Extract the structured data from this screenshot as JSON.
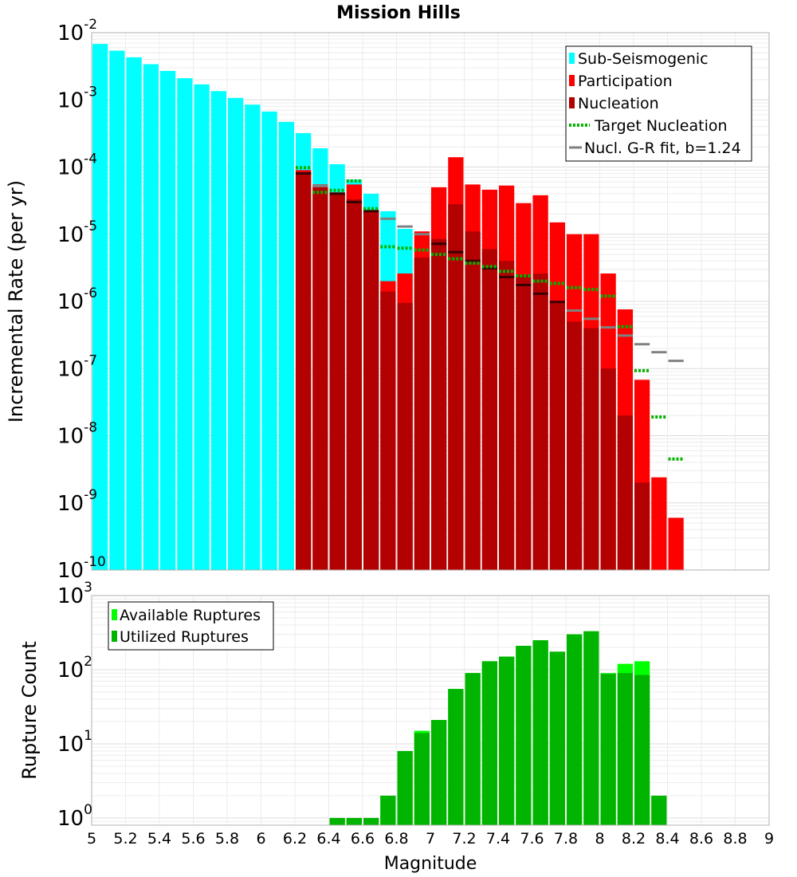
{
  "chart_data": [
    {
      "type": "bar",
      "title": "Mission Hills",
      "ylabel": "Incremental Rate (per yr)",
      "xlabel": "",
      "yscale": "log",
      "ylim": [
        1e-10,
        0.01
      ],
      "xlim": [
        5,
        9
      ],
      "bin_width": 0.1,
      "legend_placement": "top-right",
      "grid": true,
      "y_ticks": [
        {
          "base": "10",
          "exp": "-10"
        },
        {
          "base": "10",
          "exp": "-9"
        },
        {
          "base": "10",
          "exp": "-8"
        },
        {
          "base": "10",
          "exp": "-7"
        },
        {
          "base": "10",
          "exp": "-6"
        },
        {
          "base": "10",
          "exp": "-5"
        },
        {
          "base": "10",
          "exp": "-4"
        },
        {
          "base": "10",
          "exp": "-3"
        },
        {
          "base": "10",
          "exp": "-2"
        }
      ],
      "series": [
        {
          "name": "Sub-Seismogenic",
          "color": "#00ffff",
          "x": [
            5.05,
            5.15,
            5.25,
            5.35,
            5.45,
            5.55,
            5.65,
            5.75,
            5.85,
            5.95,
            6.05,
            6.15,
            6.25,
            6.35,
            6.45,
            6.55,
            6.65,
            6.75,
            6.85
          ],
          "values": [
            0.0068,
            0.0054,
            0.0043,
            0.0034,
            0.0027,
            0.0021,
            0.0017,
            0.00135,
            0.00107,
            0.00085,
            0.00067,
            0.00047,
            0.00032,
            0.00019,
            0.00011,
            6.5e-05,
            4e-05,
            2.2e-05,
            1.2e-05
          ]
        },
        {
          "name": "Participation",
          "color": "#ff0000",
          "x": [
            6.25,
            6.35,
            6.45,
            6.55,
            6.65,
            6.75,
            6.85,
            6.95,
            7.05,
            7.15,
            7.25,
            7.35,
            7.45,
            7.55,
            7.65,
            7.75,
            7.85,
            7.95,
            8.05,
            8.15,
            8.25,
            8.35,
            8.45
          ],
          "values": [
            9e-05,
            5.5e-05,
            4.2e-05,
            5.5e-05,
            2.3e-05,
            2e-06,
            2.6e-06,
            1.1e-05,
            5e-05,
            0.00014,
            5.5e-05,
            4.6e-05,
            5.3e-05,
            2.9e-05,
            3.8e-05,
            1.5e-05,
            1e-05,
            1e-05,
            2.6e-06,
            7.6e-07,
            6.8e-08,
            2.4e-09,
            6e-10
          ]
        },
        {
          "name": "Nucleation",
          "color": "#b30000",
          "x": [
            6.25,
            6.35,
            6.45,
            6.55,
            6.65,
            6.75,
            6.85,
            6.95,
            7.05,
            7.15,
            7.25,
            7.35,
            7.45,
            7.55,
            7.65,
            7.75,
            7.85,
            7.95,
            8.05,
            8.15,
            8.25
          ],
          "values": [
            8.5e-05,
            5e-05,
            4e-05,
            3.3e-05,
            2.2e-05,
            1.4e-06,
            9.5e-07,
            4.5e-06,
            8.5e-06,
            2.8e-05,
            1.1e-05,
            6e-06,
            4e-06,
            2.5e-06,
            2.6e-06,
            1e-06,
            5e-07,
            4e-07,
            1e-07,
            2e-08,
            2e-09
          ]
        },
        {
          "name": "Target Nucleation",
          "color": "#00b400",
          "style": "dotted",
          "x": [
            6.25,
            6.35,
            6.45,
            6.55,
            6.65,
            6.75,
            6.85,
            6.95,
            7.05,
            7.15,
            7.25,
            7.35,
            7.45,
            7.55,
            7.65,
            7.75,
            7.85,
            7.95,
            8.05,
            8.15,
            8.25,
            8.35,
            8.45
          ],
          "values": [
            9.8e-05,
            4.2e-05,
            4.5e-05,
            6.2e-05,
            2.4e-05,
            6.5e-06,
            6.2e-06,
            5.8e-06,
            5e-06,
            4.3e-06,
            3.7e-06,
            3.3e-06,
            2.8e-06,
            2.4e-06,
            2e-06,
            1.85e-06,
            1.6e-06,
            1.5e-06,
            1.2e-06,
            4.2e-07,
            9.3e-08,
            1.9e-08,
            4.5e-09
          ]
        },
        {
          "name": "Nucl. G-R fit, b=1.24",
          "color": "#808080",
          "style": "dash",
          "x": [
            6.25,
            6.35,
            6.45,
            6.55,
            6.65,
            6.75,
            6.85,
            6.95,
            7.05,
            7.15,
            7.25,
            7.35,
            7.45,
            7.55,
            7.65,
            7.75,
            7.85,
            7.95,
            8.05,
            8.15,
            8.25,
            8.35,
            8.45
          ],
          "values": [
            8e-05,
            5.2e-05,
            4e-05,
            3e-05,
            2.2e-05,
            1.7e-05,
            1.3e-05,
            1e-05,
            7.2e-06,
            5.4e-06,
            4e-06,
            3.1e-06,
            2.3e-06,
            1.75e-06,
            1.3e-06,
            9.8e-07,
            7.3e-07,
            5.5e-07,
            4.1e-07,
            3.1e-07,
            2.3e-07,
            1.75e-07,
            1.3e-07
          ]
        }
      ]
    },
    {
      "type": "bar",
      "title": "",
      "ylabel": "Rupture Count",
      "xlabel": "Magnitude",
      "yscale": "log",
      "ylim": [
        0.8,
        1000
      ],
      "xlim": [
        5,
        9
      ],
      "bin_width": 0.1,
      "legend_placement": "top-left",
      "grid": true,
      "y_ticks": [
        {
          "value": 1,
          "base": "10",
          "exp": "0"
        },
        {
          "value": 10,
          "base": "10",
          "exp": "1"
        },
        {
          "value": 100,
          "base": "10",
          "exp": "2"
        },
        {
          "value": 1000,
          "base": "10",
          "exp": "3"
        }
      ],
      "x_ticks": [
        "5",
        "5.2",
        "5.4",
        "5.6",
        "5.8",
        "6",
        "6.2",
        "6.4",
        "6.6",
        "6.8",
        "7",
        "7.2",
        "7.4",
        "7.6",
        "7.8",
        "8",
        "8.2",
        "8.4",
        "8.6",
        "8.8",
        "9"
      ],
      "series": [
        {
          "name": "Available Ruptures",
          "color": "#00ff00",
          "x": [
            6.45,
            6.55,
            6.65,
            6.75,
            6.85,
            6.95,
            7.05,
            7.15,
            7.25,
            7.35,
            7.45,
            7.55,
            7.65,
            7.75,
            7.85,
            7.95,
            8.05,
            8.15,
            8.25,
            8.35
          ],
          "values": [
            1,
            1,
            1,
            2,
            8,
            15,
            21,
            55,
            90,
            130,
            150,
            210,
            250,
            175,
            300,
            330,
            90,
            120,
            130,
            2
          ]
        },
        {
          "name": "Utilized Ruptures",
          "color": "#00b400",
          "x": [
            6.45,
            6.55,
            6.65,
            6.75,
            6.85,
            6.95,
            7.05,
            7.15,
            7.25,
            7.35,
            7.45,
            7.55,
            7.65,
            7.75,
            7.85,
            7.95,
            8.05,
            8.15,
            8.25,
            8.35
          ],
          "values": [
            1,
            1,
            1,
            2,
            8,
            14,
            21,
            55,
            90,
            130,
            150,
            210,
            250,
            175,
            300,
            330,
            88,
            90,
            85,
            2
          ]
        }
      ]
    }
  ]
}
